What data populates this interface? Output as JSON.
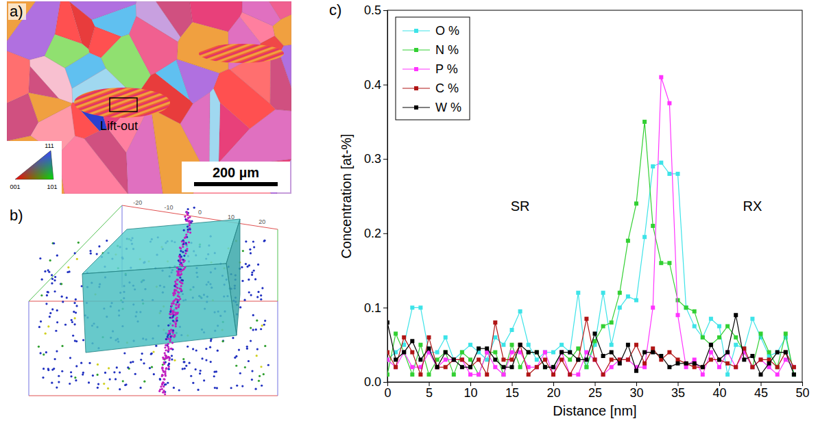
{
  "figure": {
    "panel_a": {
      "label": "a)",
      "annotation": "Lift-out",
      "scale_bar": "200 µm",
      "ipf_labels": [
        "111",
        "001",
        "101"
      ]
    },
    "panel_b": {
      "label": "b)",
      "frame_ticks": [
        -20,
        -10,
        0,
        10,
        20
      ]
    },
    "panel_c": {
      "label": "c)"
    }
  },
  "chart_data": {
    "type": "line",
    "x_label": "Distance [nm]",
    "y_label": "Concentration [at-%]",
    "xlim": [
      0,
      50
    ],
    "ylim": [
      0,
      0.5
    ],
    "xticks": [
      0,
      5,
      10,
      15,
      20,
      25,
      30,
      35,
      40,
      45,
      50
    ],
    "yticks": [
      {
        "value": 0,
        "label": "0.0"
      },
      {
        "value": 0.1,
        "label": "0.1"
      },
      {
        "value": 0.2,
        "label": "0.2"
      },
      {
        "value": 0.3,
        "label": "0.3"
      },
      {
        "value": 0.4,
        "label": "0.4"
      },
      {
        "value": 0.5,
        "label": "0.5"
      }
    ],
    "grid": false,
    "legend": "upper left",
    "marker": "square",
    "annotations": [
      {
        "text": "SR",
        "x": 16,
        "y": 0.23
      },
      {
        "text": "RX",
        "x": 44,
        "y": 0.23
      }
    ],
    "x": [
      0,
      1,
      2,
      3,
      4,
      5,
      6,
      7,
      8,
      9,
      10,
      11,
      12,
      13,
      14,
      15,
      16,
      17,
      18,
      19,
      20,
      21,
      22,
      23,
      24,
      25,
      26,
      27,
      28,
      29,
      30,
      31,
      32,
      33,
      34,
      35,
      36,
      37,
      38,
      39,
      40,
      41,
      42,
      43,
      44,
      45,
      46,
      47,
      48,
      49
    ],
    "series": [
      {
        "name": "O %",
        "color": "#3de3e8",
        "values": [
          0.03,
          0.04,
          0.05,
          0.1,
          0.1,
          0.04,
          0.04,
          0.06,
          0.03,
          0.04,
          0.05,
          0.04,
          0.03,
          0.06,
          0.05,
          0.07,
          0.095,
          0.05,
          0.03,
          0.04,
          0.04,
          0.05,
          0.04,
          0.12,
          0.02,
          0.05,
          0.12,
          0.05,
          0.1,
          0.115,
          0.11,
          0.195,
          0.29,
          0.295,
          0.28,
          0.28,
          0.1,
          0.075,
          0.06,
          0.085,
          0.075,
          0.01,
          0.05,
          0.045,
          0.085,
          0.06,
          0.035,
          0.04,
          0.06,
          0.01
        ]
      },
      {
        "name": "N %",
        "color": "#33d033",
        "values": [
          0.01,
          0.065,
          0.04,
          0.01,
          0.05,
          0.01,
          0.03,
          0.04,
          0.01,
          0.04,
          0.03,
          0.01,
          0.04,
          0.04,
          0.01,
          0.05,
          0.02,
          0.04,
          0.04,
          0.02,
          0.02,
          0.04,
          0.03,
          0.045,
          0.02,
          0.055,
          0.075,
          0.08,
          0.12,
          0.19,
          0.24,
          0.35,
          0.21,
          0.16,
          0.16,
          0.11,
          0.1,
          0.095,
          0.06,
          0.05,
          0.06,
          0.075,
          0.06,
          0.04,
          0.02,
          0.065,
          0.04,
          0.02,
          0.065,
          0.01
        ]
      },
      {
        "name": "P %",
        "color": "#ff33ff",
        "values": [
          0.03,
          0.02,
          0.04,
          0.02,
          0.02,
          0.04,
          0.02,
          0.03,
          0.03,
          0.03,
          0.01,
          0.01,
          0.04,
          0.02,
          0.01,
          0.04,
          0.04,
          0.02,
          0.02,
          0.04,
          0.01,
          0.04,
          0.01,
          0.01,
          0.04,
          0.03,
          0.01,
          0.02,
          0.03,
          0.03,
          0.02,
          0.02,
          0.1,
          0.41,
          0.375,
          0.09,
          0.02,
          0.03,
          0.01,
          0.04,
          0.02,
          0.04,
          0.02,
          0.04,
          0.02,
          0.03,
          0.02,
          0.01,
          0.03,
          0.02
        ]
      },
      {
        "name": "C %",
        "color": "#b01515",
        "values": [
          0.04,
          0.02,
          0.06,
          0.04,
          0.01,
          0.06,
          0.02,
          0.02,
          0.03,
          0.03,
          0.02,
          0.03,
          0.01,
          0.08,
          0.03,
          0.03,
          0.05,
          0.01,
          0.02,
          0.03,
          0.01,
          0.03,
          0.01,
          0.03,
          0.085,
          0.03,
          0.01,
          0.03,
          0.03,
          0.03,
          0.05,
          0.025,
          0.045,
          0.03,
          0.04,
          0.03,
          0.025,
          0.02,
          0.02,
          0.03,
          0.03,
          0.025,
          0.02,
          0.045,
          0.02,
          0.03,
          0.03,
          0.02,
          0.04,
          0.02
        ]
      },
      {
        "name": "W %",
        "color": "#000000",
        "values": [
          0.08,
          0.03,
          0.04,
          0.055,
          0.03,
          0.045,
          0.02,
          0.04,
          0.03,
          0.02,
          0.02,
          0.045,
          0.045,
          0.03,
          0.02,
          0.02,
          0.05,
          0.04,
          0.04,
          0.02,
          0.02,
          0.04,
          0.04,
          0.03,
          0.03,
          0.065,
          0.035,
          0.04,
          0.025,
          0.05,
          0.015,
          0.04,
          0.04,
          0.035,
          0.02,
          0.025,
          0.025,
          0.025,
          0.02,
          0.05,
          0.03,
          0.04,
          0.09,
          0.03,
          0.035,
          0.01,
          0.025,
          0.04,
          0.04,
          0.01
        ]
      }
    ]
  }
}
